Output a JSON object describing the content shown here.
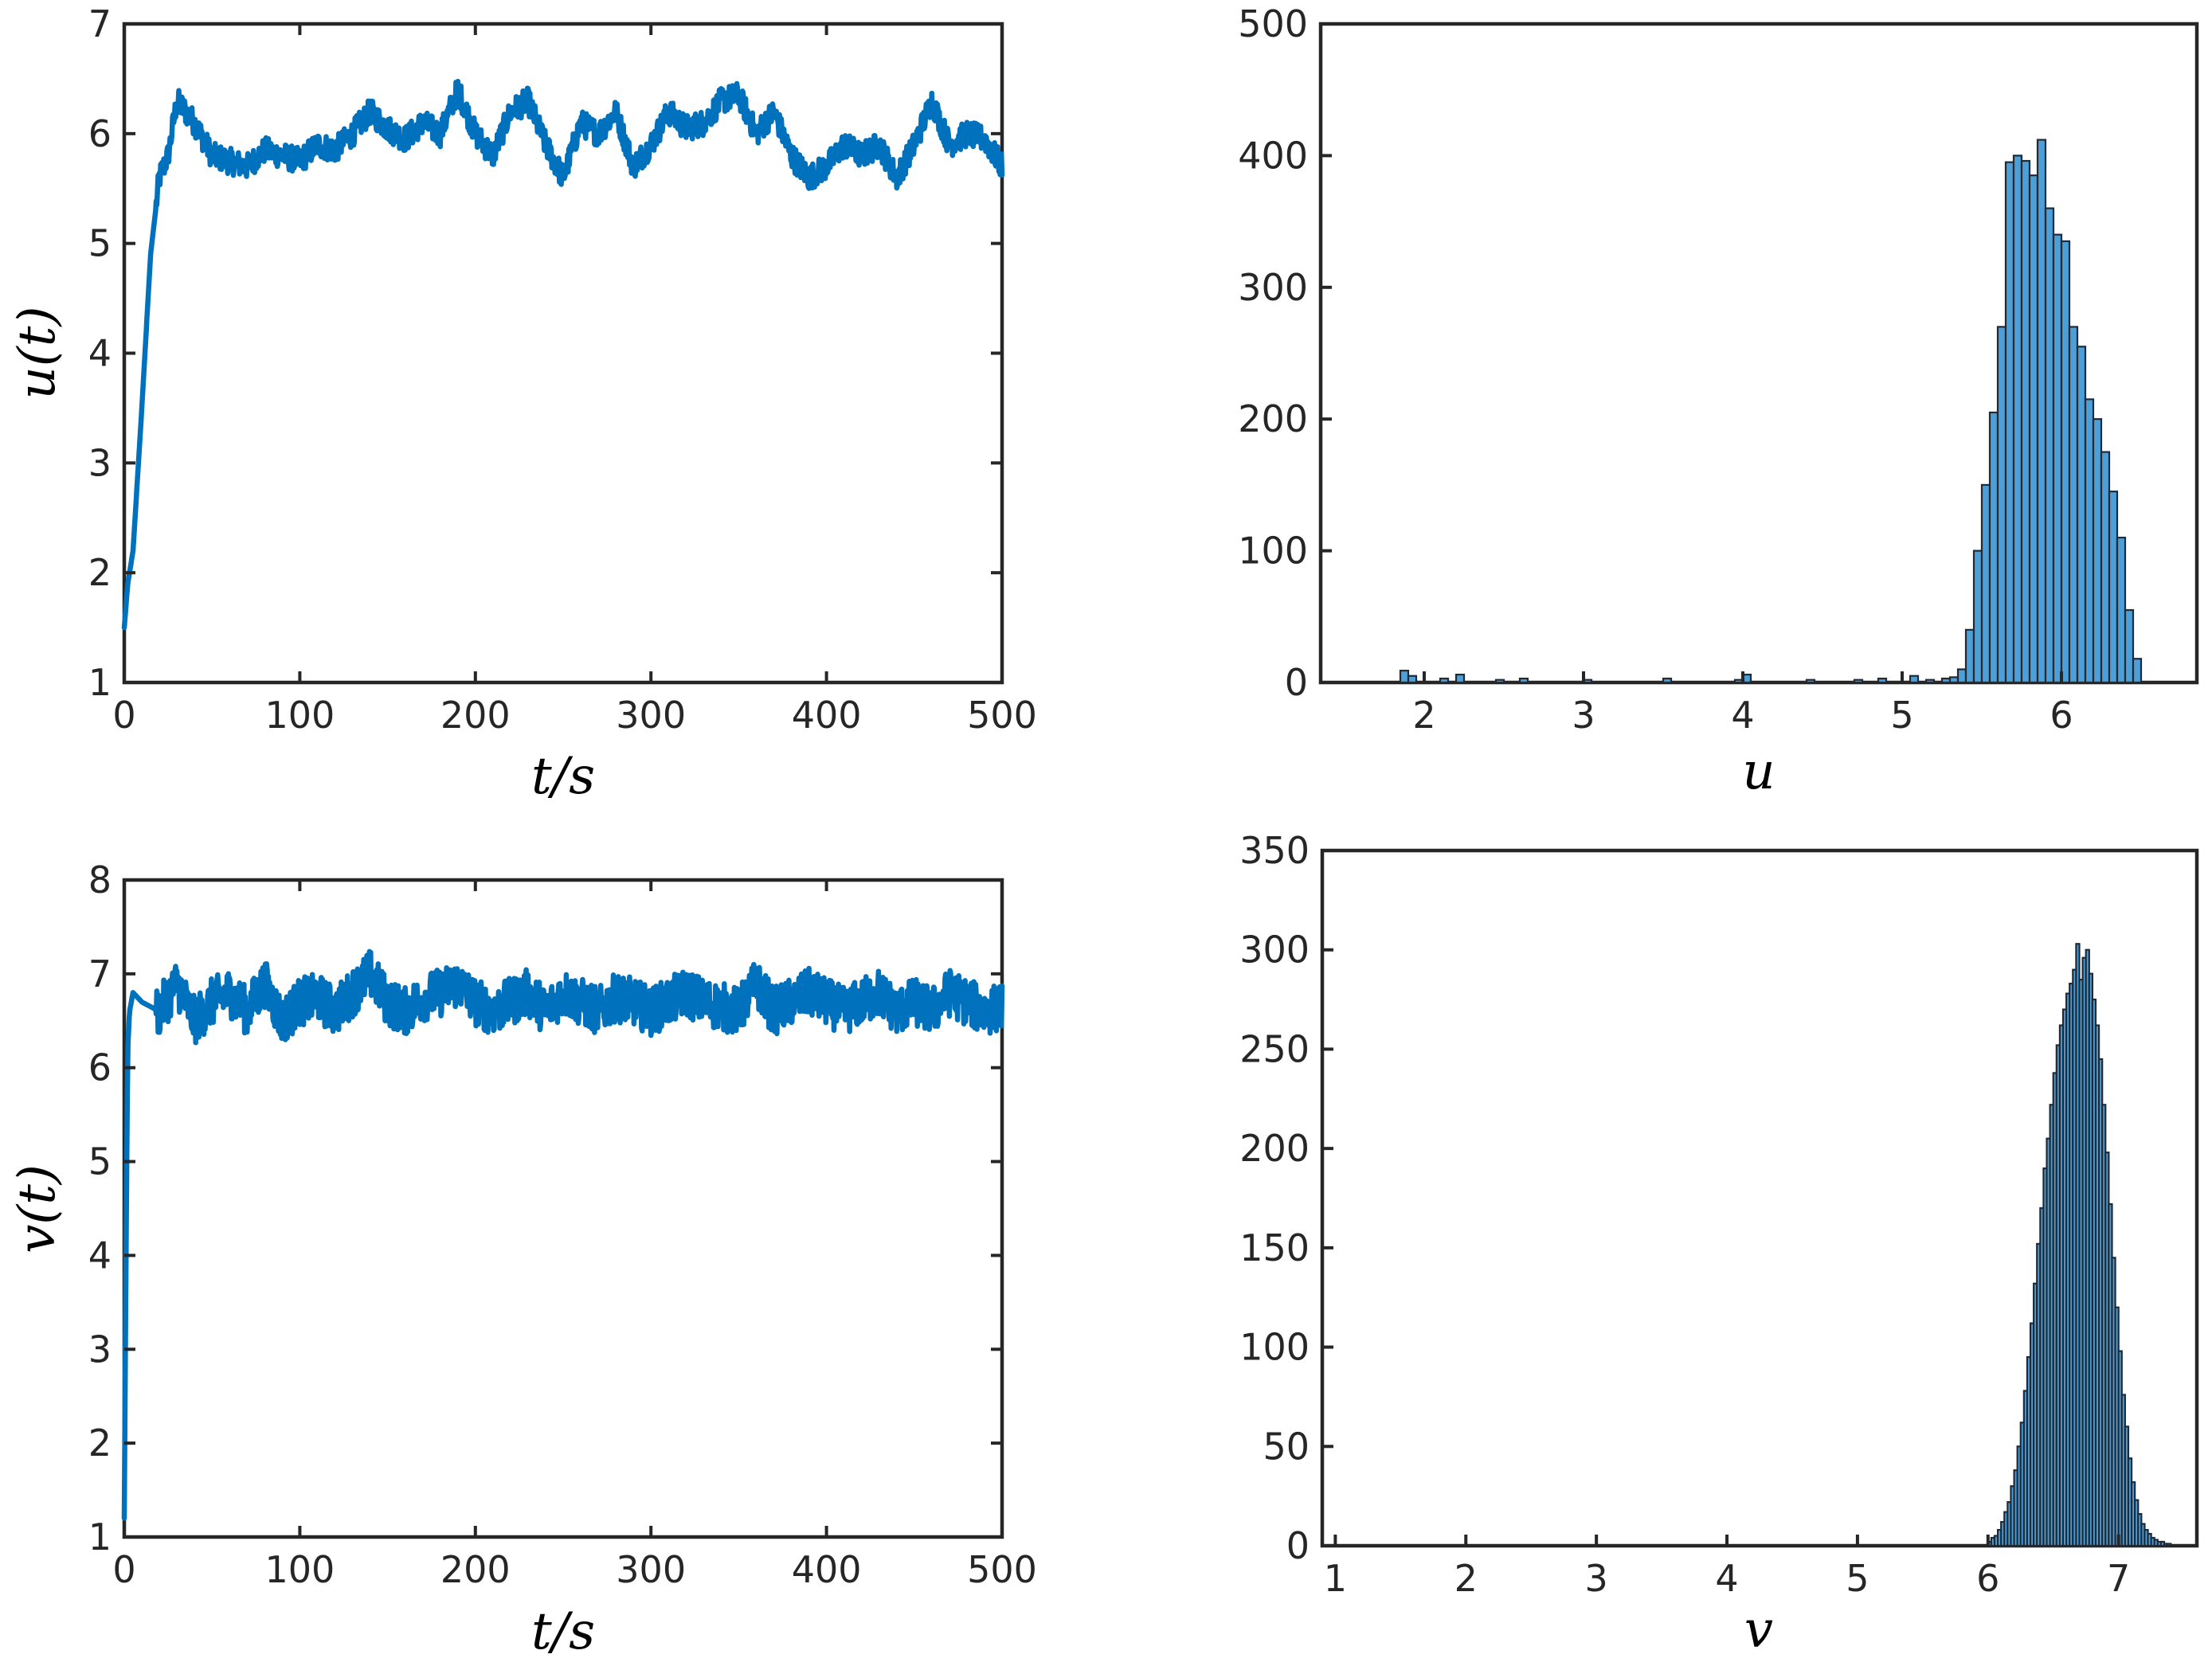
{
  "colors": {
    "line": "#0072BD",
    "bar_fill": "#4D9FD6",
    "bar_edge": "#1F2A36",
    "axis": "#262626"
  },
  "chart_data": [
    {
      "id": "u-time",
      "type": "line",
      "xlabel": "t/s",
      "ylabel": "u(t)",
      "xlim": [
        0,
        500
      ],
      "ylim": [
        1,
        7
      ],
      "xticks": [
        0,
        100,
        200,
        300,
        400,
        500
      ],
      "yticks": [
        1,
        2,
        3,
        4,
        5,
        6,
        7
      ],
      "grid": false,
      "series": [
        {
          "x": [
            0,
            2,
            5,
            10,
            15,
            20,
            25,
            30,
            40,
            50,
            60,
            70,
            80,
            90,
            100,
            110,
            120,
            130,
            140,
            150,
            160,
            170,
            180,
            190,
            200,
            210,
            220,
            230,
            240,
            250,
            260,
            270,
            280,
            290,
            300,
            310,
            320,
            330,
            340,
            350,
            360,
            370,
            380,
            390,
            400,
            410,
            420,
            430,
            440,
            450,
            460,
            470,
            480,
            490,
            500
          ],
          "y": [
            1.5,
            1.9,
            2.2,
            3.5,
            4.9,
            5.6,
            5.8,
            6.3,
            6.1,
            5.8,
            5.75,
            5.7,
            5.85,
            5.8,
            5.75,
            5.9,
            5.85,
            6.0,
            6.2,
            6.05,
            5.95,
            6.1,
            6.0,
            6.4,
            6.0,
            5.8,
            6.2,
            6.3,
            5.9,
            5.6,
            6.1,
            6.0,
            6.2,
            5.7,
            5.9,
            6.2,
            6.05,
            6.1,
            6.3,
            6.35,
            6.0,
            6.2,
            5.8,
            5.6,
            5.7,
            5.9,
            5.8,
            5.9,
            5.6,
            5.9,
            6.3,
            5.9,
            6.0,
            5.95,
            5.7
          ],
          "noise": 0.12
        }
      ]
    },
    {
      "id": "u-hist",
      "type": "bar",
      "xlabel": "u",
      "ylabel": "",
      "xlim": [
        1.35,
        6.85
      ],
      "ylim": [
        0,
        500
      ],
      "xticks": [
        2,
        3,
        4,
        5,
        6
      ],
      "yticks": [
        0,
        100,
        200,
        300,
        400,
        500
      ],
      "bin_width": 0.05,
      "bin_centers": [
        5.375,
        5.425,
        5.475,
        5.525,
        5.575,
        5.625,
        5.675,
        5.725,
        5.775,
        5.825,
        5.875,
        5.925,
        5.975,
        6.025,
        6.075,
        6.125,
        6.175,
        6.225,
        6.275,
        6.325,
        6.375,
        6.425,
        6.475
      ],
      "values": [
        10,
        40,
        100,
        150,
        205,
        270,
        395,
        400,
        396,
        385,
        412,
        360,
        340,
        335,
        270,
        255,
        215,
        200,
        175,
        145,
        110,
        55,
        18
      ],
      "low_bin_centers": [
        1.875,
        1.925,
        2.125,
        2.225,
        2.475,
        2.625,
        3.025,
        3.525,
        3.975,
        4.025,
        4.425,
        4.725,
        4.875,
        5.075,
        5.175,
        5.275,
        5.325
      ],
      "low_values": [
        9,
        5,
        3,
        6,
        2,
        3,
        2,
        3,
        2,
        6,
        2,
        2,
        3,
        5,
        2,
        3,
        4
      ]
    },
    {
      "id": "v-time",
      "type": "line",
      "xlabel": "t/s",
      "ylabel": "v(t)",
      "xlim": [
        0,
        500
      ],
      "ylim": [
        1,
        8
      ],
      "xticks": [
        0,
        100,
        200,
        300,
        400,
        500
      ],
      "yticks": [
        1,
        2,
        3,
        4,
        5,
        6,
        7,
        8
      ],
      "grid": false,
      "series": [
        {
          "x": [
            0,
            1,
            2,
            3,
            5,
            10,
            20,
            30,
            40,
            50,
            60,
            70,
            80,
            90,
            100,
            110,
            120,
            130,
            140,
            150,
            160,
            170,
            180,
            190,
            200,
            210,
            220,
            230,
            240,
            250,
            260,
            270,
            280,
            290,
            300,
            310,
            320,
            330,
            340,
            350,
            360,
            370,
            380,
            390,
            400,
            410,
            420,
            430,
            440,
            450,
            460,
            470,
            480,
            490,
            500
          ],
          "y": [
            1.2,
            4.0,
            6.2,
            6.6,
            6.8,
            6.7,
            6.6,
            6.9,
            6.5,
            6.7,
            6.8,
            6.6,
            6.9,
            6.5,
            6.7,
            6.75,
            6.6,
            6.8,
            7.0,
            6.7,
            6.6,
            6.75,
            6.8,
            6.9,
            6.7,
            6.6,
            6.7,
            6.8,
            6.6,
            6.8,
            6.7,
            6.6,
            6.75,
            6.7,
            6.6,
            6.7,
            6.8,
            6.7,
            6.65,
            6.6,
            6.9,
            6.6,
            6.7,
            6.8,
            6.7,
            6.6,
            6.7,
            6.8,
            6.6,
            6.7,
            6.6,
            6.8,
            6.7,
            6.6,
            6.65
          ],
          "noise": 0.26
        }
      ]
    },
    {
      "id": "v-hist",
      "type": "bar",
      "xlabel": "v",
      "ylabel": "",
      "xlim": [
        0.9,
        7.6
      ],
      "ylim": [
        0,
        350
      ],
      "xticks": [
        1,
        2,
        3,
        4,
        5,
        6,
        7
      ],
      "yticks": [
        0,
        50,
        100,
        150,
        200,
        250,
        300,
        350
      ],
      "bin_width": 0.025,
      "bin_centers": [
        6.0125,
        6.0375,
        6.0625,
        6.0875,
        6.1125,
        6.1375,
        6.1625,
        6.1875,
        6.2125,
        6.2375,
        6.2625,
        6.2875,
        6.3125,
        6.3375,
        6.3625,
        6.3875,
        6.4125,
        6.4375,
        6.4625,
        6.4875,
        6.5125,
        6.5375,
        6.5625,
        6.5875,
        6.6125,
        6.6375,
        6.6625,
        6.6875,
        6.7125,
        6.7375,
        6.7625,
        6.7875,
        6.8125,
        6.8375,
        6.8625,
        6.8875,
        6.9125,
        6.9375,
        6.9625,
        6.9875,
        7.0125,
        7.0375,
        7.0625,
        7.0875,
        7.1125,
        7.1375,
        7.1625,
        7.1875,
        7.2125,
        7.2375,
        7.2625,
        7.2875,
        7.3125,
        7.3375,
        7.3625,
        7.3875
      ],
      "values": [
        2,
        4,
        5,
        8,
        12,
        17,
        22,
        30,
        38,
        50,
        62,
        78,
        95,
        112,
        132,
        152,
        170,
        190,
        205,
        222,
        238,
        252,
        262,
        270,
        278,
        283,
        290,
        303,
        285,
        296,
        300,
        288,
        275,
        262,
        245,
        222,
        198,
        172,
        145,
        120,
        98,
        76,
        60,
        44,
        32,
        23,
        16,
        11,
        8,
        6,
        4,
        3,
        2,
        2,
        1,
        1
      ]
    }
  ]
}
